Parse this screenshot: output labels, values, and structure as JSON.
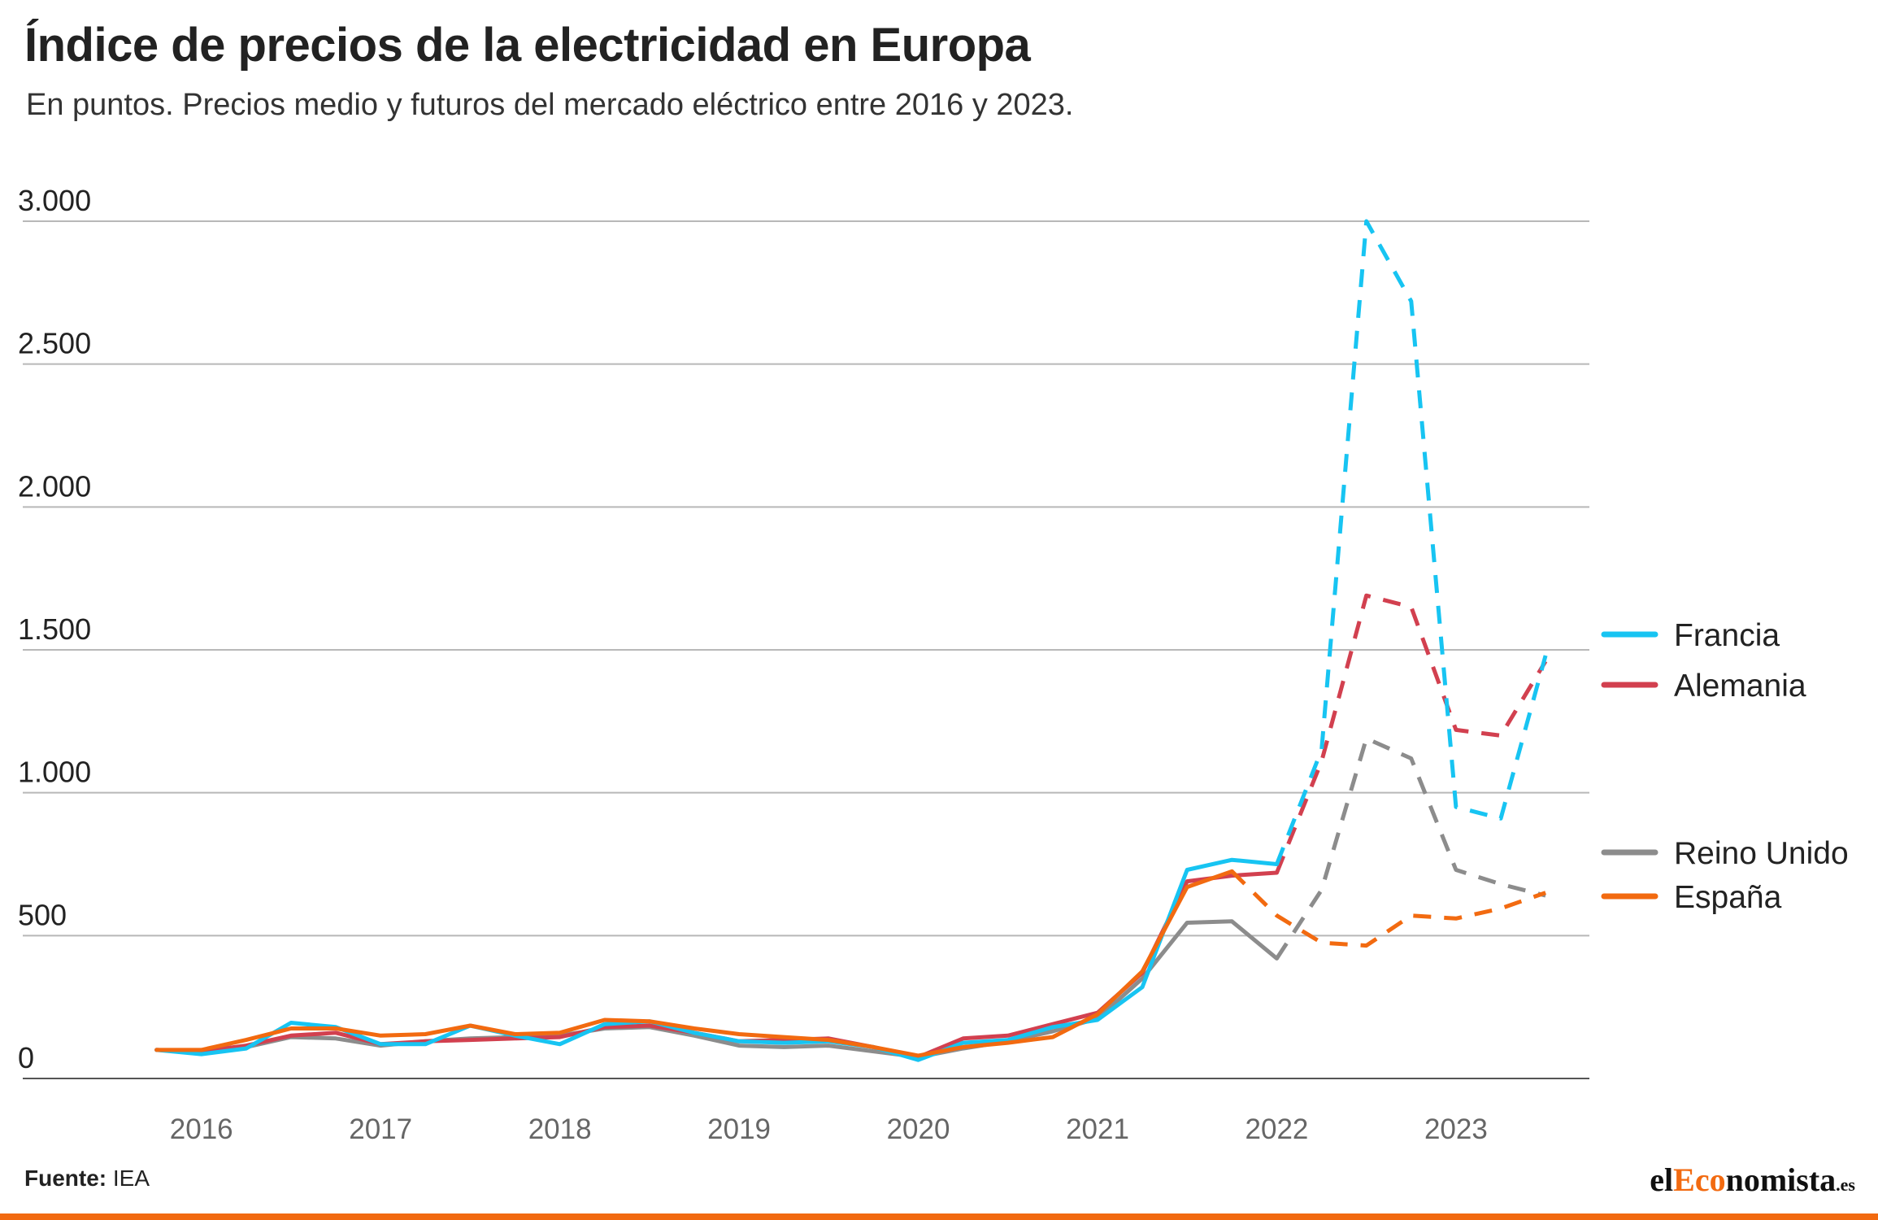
{
  "title": "Índice de precios de la electricidad en Europa",
  "subtitle": "En puntos. Precios medio y futuros del mercado eléctrico entre 2016 y 2023.",
  "source": {
    "label": "Fuente:",
    "value": "IEA"
  },
  "logo": {
    "prefix": "el",
    "accent": "Eco",
    "rest": "nomista",
    "tld": ".es"
  },
  "colors": {
    "accent": "#f26a10",
    "grid": "#b8b8b8"
  },
  "chart_data": {
    "type": "line",
    "title": "Índice de precios de la electricidad en Europa",
    "subtitle": "En puntos. Precios medio y futuros del mercado eléctrico entre 2016 y 2023.",
    "xlabel": "",
    "ylabel": "",
    "xlim": [
      2015.72,
      2023.64
    ],
    "ylim": [
      0,
      3000
    ],
    "yticks": [
      0,
      500,
      1000,
      1500,
      2000,
      2500,
      3000
    ],
    "ytick_labels": [
      "0",
      "500",
      "1.000",
      "1.500",
      "2.000",
      "2.500",
      "3.000"
    ],
    "xticks": [
      2016,
      2017,
      2018,
      2019,
      2020,
      2021,
      2022,
      2023
    ],
    "xtick_labels": [
      "2016",
      "2017",
      "2018",
      "2019",
      "2020",
      "2021",
      "2022",
      "2023"
    ],
    "grid": "horizontal",
    "legend_position": "right",
    "x": [
      2015.75,
      2016.0,
      2016.25,
      2016.5,
      2016.75,
      2017.0,
      2017.25,
      2017.5,
      2017.75,
      2018.0,
      2018.25,
      2018.5,
      2018.75,
      2019.0,
      2019.25,
      2019.5,
      2019.75,
      2020.0,
      2020.25,
      2020.5,
      2020.75,
      2021.0,
      2021.25,
      2021.5,
      2021.75,
      2022.0,
      2022.25,
      2022.5,
      2022.75,
      2023.0,
      2023.25,
      2023.5
    ],
    "series": [
      {
        "name": "Francia",
        "color": "#17c4f2",
        "forecast_from_index": 25,
        "values": [
          100,
          85,
          105,
          195,
          180,
          120,
          120,
          185,
          150,
          120,
          190,
          200,
          160,
          130,
          125,
          130,
          110,
          65,
          125,
          135,
          180,
          205,
          320,
          730,
          765,
          750,
          1150,
          3000,
          2720,
          950,
          910,
          1480
        ]
      },
      {
        "name": "Alemania",
        "color": "#d2404f",
        "forecast_from_index": 25,
        "values": [
          100,
          95,
          115,
          150,
          160,
          120,
          130,
          135,
          140,
          145,
          180,
          185,
          160,
          130,
          135,
          140,
          110,
          75,
          140,
          150,
          190,
          230,
          370,
          690,
          710,
          720,
          1110,
          1690,
          1650,
          1220,
          1200,
          1460
        ]
      },
      {
        "name": "Reino Unido",
        "color": "#8c8c8c",
        "forecast_from_index": 25,
        "values": [
          100,
          95,
          110,
          145,
          140,
          115,
          130,
          140,
          145,
          150,
          175,
          180,
          150,
          115,
          110,
          115,
          95,
          75,
          105,
          130,
          165,
          210,
          350,
          545,
          550,
          420,
          660,
          1190,
          1120,
          730,
          680,
          640
        ]
      },
      {
        "name": "España",
        "color": "#f26a10",
        "forecast_from_index": 24,
        "values": [
          100,
          100,
          135,
          175,
          175,
          150,
          155,
          185,
          155,
          160,
          205,
          200,
          175,
          155,
          145,
          135,
          110,
          80,
          110,
          125,
          145,
          225,
          375,
          670,
          725,
          570,
          475,
          465,
          570,
          560,
          595,
          650
        ]
      }
    ]
  }
}
